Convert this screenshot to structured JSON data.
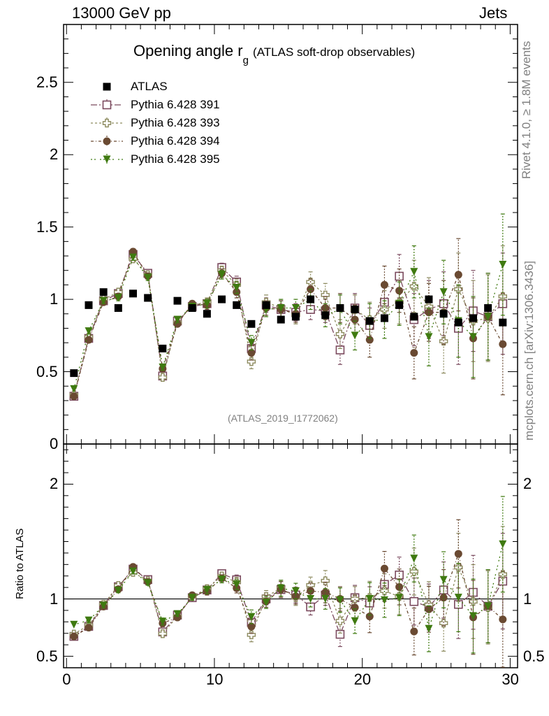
{
  "header": {
    "left": "13000 GeV pp",
    "right": "Jets"
  },
  "title": {
    "main": "Opening angle r",
    "subscript": "g",
    "suffix": "(ATLAS soft-drop observables)"
  },
  "analysis_id": "(ATLAS_2019_I1772062)",
  "side_labels": {
    "rivet": "Rivet 4.1.0, ≥ 1.8M events",
    "mcplots": "mcplots.cern.ch [arXiv:1306.3436]"
  },
  "ratio_ylabel": "Ratio to ATLAS",
  "colors": {
    "data": "#000000",
    "s391": "#7b4a5e",
    "s393": "#8c8a5e",
    "s394": "#6a4a32",
    "s395": "#3f7a10",
    "reference_line": "#000000"
  },
  "chart_data": {
    "type": "scatter",
    "x": [
      0.5,
      1.5,
      2.5,
      3.5,
      4.5,
      5.5,
      6.5,
      7.5,
      8.5,
      9.5,
      10.5,
      11.5,
      12.5,
      13.5,
      14.5,
      15.5,
      16.5,
      17.5,
      18.5,
      19.5,
      20.5,
      21.5,
      22.5,
      23.5,
      24.5,
      25.5,
      26.5,
      27.5,
      28.5,
      29.5
    ],
    "xlim": [
      -0.2,
      30.5
    ],
    "xticks": [
      0,
      10,
      20,
      30
    ],
    "main_panel": {
      "ylim": [
        0,
        2.9
      ],
      "yticks": [
        0,
        0.5,
        1,
        1.5,
        2,
        2.5
      ],
      "yticklabels": [
        "0",
        "0.5",
        "1",
        "1.5",
        "2",
        "2.5"
      ]
    },
    "ratio_panel": {
      "ylim": [
        0.4,
        2.35
      ],
      "yticks": [
        0.5,
        1,
        2
      ],
      "yticklabels": [
        "0.5",
        "1",
        "2"
      ],
      "reference": 1
    },
    "legend": {
      "location": "top-left",
      "entries": [
        "ATLAS",
        "Pythia 6.428 391",
        "Pythia 6.428 393",
        "Pythia 6.428 394",
        "Pythia 6.428 395"
      ]
    },
    "series": [
      {
        "name": "ATLAS",
        "marker": "filled-square",
        "color": "#000000",
        "values": [
          0.49,
          0.96,
          1.05,
          0.94,
          1.04,
          1.01,
          0.66,
          0.99,
          0.94,
          0.9,
          1.0,
          0.96,
          0.83,
          0.96,
          0.86,
          0.88,
          1.0,
          0.89,
          0.94,
          0.93,
          0.85,
          0.87,
          0.96,
          0.88,
          1.0,
          0.9,
          0.84,
          0.87,
          0.94,
          0.84
        ],
        "errors": [
          0.02,
          0.02,
          0.02,
          0.02,
          0.02,
          0.02,
          0.02,
          0.02,
          0.02,
          0.02,
          0.02,
          0.02,
          0.02,
          0.02,
          0.02,
          0.02,
          0.02,
          0.02,
          0.02,
          0.02,
          0.02,
          0.02,
          0.02,
          0.02,
          0.02,
          0.02,
          0.02,
          0.02,
          0.02,
          0.02
        ]
      },
      {
        "name": "Pythia 6.428 391",
        "marker": "open-square",
        "color": "#7b4a5e",
        "dash": "9,3,2,3",
        "values": [
          0.33,
          0.73,
          0.99,
          1.04,
          1.31,
          1.18,
          0.47,
          0.85,
          0.95,
          0.97,
          1.22,
          1.12,
          0.66,
          0.96,
          0.93,
          0.91,
          0.93,
          0.92,
          0.65,
          0.94,
          0.82,
          0.98,
          1.16,
          0.86,
          0.93,
          0.97,
          0.8,
          0.92,
          0.88,
          0.97
        ],
        "errors": [
          0.01,
          0.02,
          0.02,
          0.02,
          0.02,
          0.02,
          0.02,
          0.02,
          0.02,
          0.03,
          0.03,
          0.04,
          0.05,
          0.05,
          0.06,
          0.06,
          0.07,
          0.08,
          0.1,
          0.1,
          0.12,
          0.13,
          0.15,
          0.18,
          0.2,
          0.22,
          0.25,
          0.28,
          0.3,
          0.35
        ]
      },
      {
        "name": "Pythia 6.428 393",
        "marker": "open-cross",
        "color": "#8c8a5e",
        "dash": "3,3",
        "values": [
          0.34,
          0.74,
          1.0,
          1.05,
          1.28,
          1.17,
          0.46,
          0.84,
          0.96,
          0.98,
          1.2,
          1.1,
          0.57,
          0.98,
          0.94,
          0.89,
          1.12,
          1.03,
          0.76,
          0.93,
          0.86,
          0.93,
          0.98,
          1.09,
          0.95,
          0.71,
          1.07,
          0.85,
          0.87,
          1.02
        ],
        "errors": [
          0.01,
          0.02,
          0.02,
          0.02,
          0.02,
          0.02,
          0.02,
          0.02,
          0.02,
          0.03,
          0.03,
          0.04,
          0.05,
          0.05,
          0.06,
          0.06,
          0.07,
          0.08,
          0.1,
          0.1,
          0.12,
          0.13,
          0.15,
          0.18,
          0.2,
          0.22,
          0.25,
          0.28,
          0.3,
          0.35
        ]
      },
      {
        "name": "Pythia 6.428 394",
        "marker": "filled-circle",
        "color": "#6a4a32",
        "dash": "4,3,1,3",
        "values": [
          0.33,
          0.72,
          0.98,
          1.02,
          1.33,
          1.16,
          0.52,
          0.83,
          0.97,
          0.96,
          1.18,
          1.05,
          0.63,
          0.94,
          0.93,
          0.9,
          1.07,
          0.94,
          0.94,
          0.86,
          0.72,
          1.1,
          1.06,
          0.63,
          0.91,
          0.91,
          1.17,
          0.73,
          0.88,
          0.69
        ],
        "errors": [
          0.01,
          0.02,
          0.02,
          0.02,
          0.02,
          0.02,
          0.02,
          0.02,
          0.02,
          0.03,
          0.03,
          0.04,
          0.05,
          0.05,
          0.06,
          0.06,
          0.07,
          0.08,
          0.1,
          0.1,
          0.12,
          0.13,
          0.15,
          0.18,
          0.2,
          0.22,
          0.25,
          0.28,
          0.3,
          0.35
        ]
      },
      {
        "name": "Pythia 6.428 395",
        "marker": "filled-triangle-down",
        "color": "#3f7a10",
        "dash": "2,3,2,6",
        "values": [
          0.38,
          0.78,
          0.99,
          1.01,
          1.29,
          1.15,
          0.53,
          0.86,
          0.95,
          0.97,
          1.17,
          1.08,
          0.7,
          0.93,
          0.94,
          0.94,
          1.0,
          0.89,
          0.93,
          0.75,
          0.85,
          0.86,
          0.97,
          1.19,
          0.74,
          1.05,
          0.85,
          0.74,
          0.88,
          1.24
        ],
        "errors": [
          0.01,
          0.02,
          0.02,
          0.02,
          0.02,
          0.02,
          0.02,
          0.02,
          0.02,
          0.03,
          0.03,
          0.04,
          0.05,
          0.05,
          0.06,
          0.06,
          0.07,
          0.08,
          0.1,
          0.1,
          0.12,
          0.13,
          0.15,
          0.18,
          0.2,
          0.22,
          0.25,
          0.28,
          0.3,
          0.35
        ]
      }
    ]
  }
}
